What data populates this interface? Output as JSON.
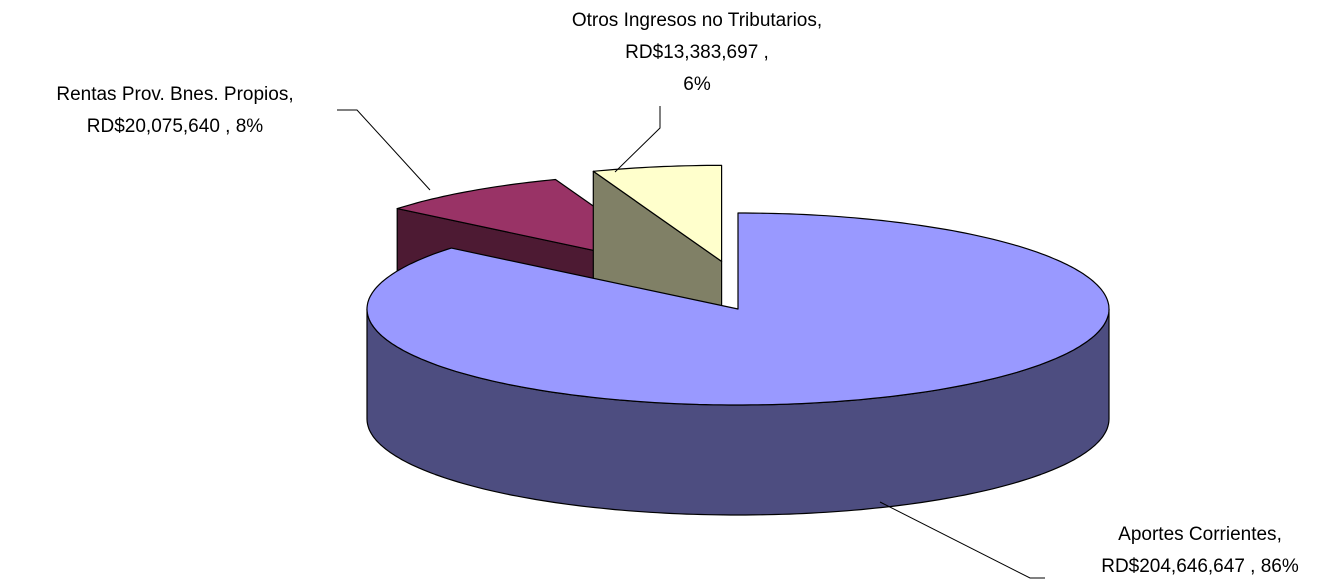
{
  "chart_data": {
    "type": "pie",
    "categories": [
      "Aportes Corrientes",
      "Rentas Prov. Bnes. Propios",
      "Otros Ingresos no Tributarios"
    ],
    "values": [
      204646647,
      20075640,
      13383697
    ],
    "value_labels": [
      "RD$204,646,647",
      "RD$20,075,640",
      "RD$13,383,697"
    ],
    "percent_labels": [
      "86%",
      "8%",
      "6%"
    ],
    "colors": [
      "#9999ff",
      "#993366",
      "#ffffcc"
    ]
  }
}
